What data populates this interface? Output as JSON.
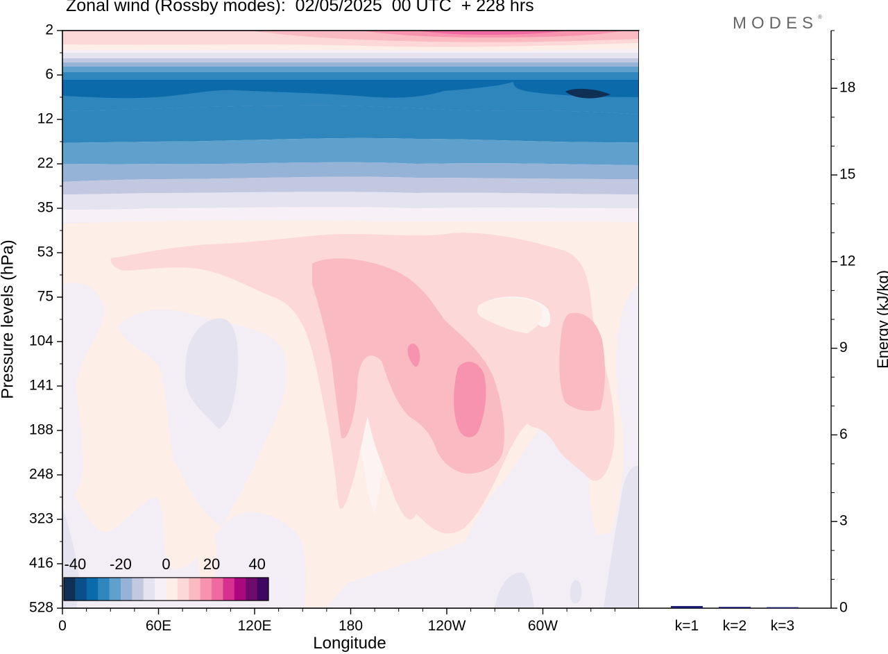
{
  "title": "Zonal wind (Rossby modes):  02/05/2025  00 UTC  + 228 hrs",
  "brand": "MODES",
  "brand_mark": "®",
  "colors": {
    "scale": [
      "#0f2f55",
      "#0a4f88",
      "#0b6aa9",
      "#2f86bd",
      "#5fa1cc",
      "#95b3d7",
      "#c2c8e0",
      "#e4e3ef",
      "#f7f1f7",
      "#fdeee8",
      "#fcd9d8",
      "#f9bac2",
      "#f793ae",
      "#ef6aa0",
      "#d8308f",
      "#ab087f",
      "#6e0a6b",
      "#3f0760"
    ]
  },
  "chart_data": [
    {
      "type": "heatmap",
      "subtype": "filled-contour",
      "title": "Zonal wind (Rossby modes):  02/05/2025  00 UTC  + 228 hrs",
      "xlabel": "Longitude",
      "ylabel": "Pressure levels (hPa)",
      "x_ticks": [
        "0",
        "60E",
        "120E",
        "180",
        "120W",
        "60W"
      ],
      "y_ticks": [
        "2",
        "6",
        "12",
        "22",
        "35",
        "53",
        "75",
        "104",
        "141",
        "188",
        "248",
        "323",
        "416",
        "528"
      ],
      "y_scale": "log",
      "ylim": [
        528,
        2
      ],
      "colorbar": {
        "tick_labels": [
          "-40",
          "-20",
          "0",
          "20",
          "40"
        ],
        "range": [
          -45,
          45
        ],
        "step": 5,
        "placement": "bottom-left"
      },
      "features": [
        {
          "name": "upper positive band",
          "pressure_hPa": [
            2,
            4
          ],
          "value": 18
        },
        {
          "name": "strong negative band",
          "pressure_hPa": [
            6,
            16
          ],
          "value": -35
        },
        {
          "name": "negative band",
          "pressure_hPa": [
            16,
            35
          ],
          "value": -18
        },
        {
          "name": "positive maximum near 125W",
          "pressure_hPa": [
            104,
            188
          ],
          "value": 22
        },
        {
          "name": "positive maximum near 70W",
          "pressure_hPa": [
            90,
            160
          ],
          "value": 12
        }
      ]
    },
    {
      "type": "bar",
      "categories": [
        "k=1",
        "k=2",
        "k=3"
      ],
      "values": [
        0.05,
        0.02,
        0.01
      ],
      "ylabel": "Energy (kJ/kg)",
      "y_ticks": [
        "0",
        "3",
        "6",
        "9",
        "12",
        "15",
        "18"
      ],
      "ylim": [
        0,
        20
      ]
    }
  ]
}
